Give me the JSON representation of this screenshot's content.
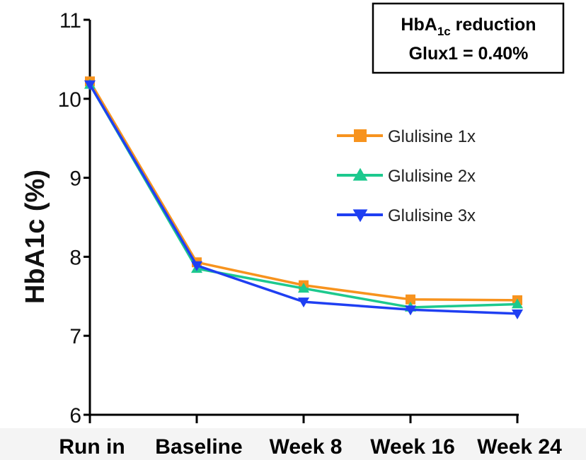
{
  "chart_data": {
    "type": "line",
    "categories": [
      "Run in",
      "Baseline",
      "Week 8",
      "Week 16",
      "Week 24"
    ],
    "ylabel": "HbA1c (%)",
    "ylim": [
      6,
      11
    ],
    "yticks": [
      6,
      7,
      8,
      9,
      10,
      11
    ],
    "grid": false,
    "legend_position": "right",
    "series": [
      {
        "name": "Glulisine 1x",
        "color": "#F7931E",
        "marker": "square",
        "values": [
          10.22,
          7.93,
          7.64,
          7.46,
          7.45
        ]
      },
      {
        "name": "Glulisine 2x",
        "color": "#1DC98E",
        "marker": "triangle-up",
        "values": [
          10.18,
          7.85,
          7.6,
          7.36,
          7.4
        ]
      },
      {
        "name": "Glulisine 3x",
        "color": "#1F3FF2",
        "marker": "triangle-down",
        "values": [
          10.18,
          7.89,
          7.43,
          7.33,
          7.28
        ]
      }
    ],
    "annotation": {
      "prefix": "HbA",
      "subscript": "1c",
      "suffix": " reduction",
      "line2": "Glux1 = 0.40%"
    }
  }
}
